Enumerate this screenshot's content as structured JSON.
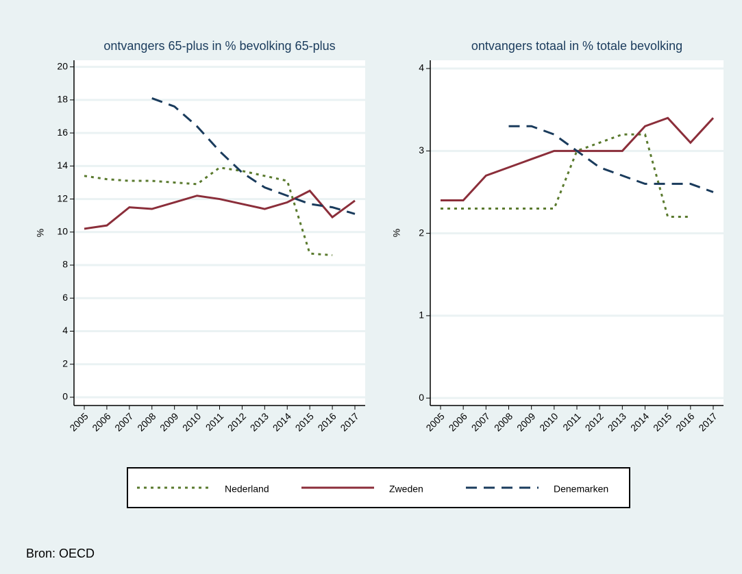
{
  "chart_data": [
    {
      "type": "line",
      "title": "ontvangers 65-plus in % bevolking 65-plus",
      "y_label": "%",
      "categories": [
        "2005",
        "2006",
        "2007",
        "2008",
        "2009",
        "2010",
        "2011",
        "2012",
        "2013",
        "2014",
        "2015",
        "2016",
        "2017"
      ],
      "ylim": [
        -0.5,
        20.4
      ],
      "yticks": [
        0,
        2,
        4,
        6,
        8,
        10,
        12,
        14,
        16,
        18,
        20
      ],
      "grid": true,
      "series": [
        {
          "name": "Nederland",
          "color": "#5a7a2e",
          "dash": "dot",
          "values": [
            13.4,
            13.2,
            13.1,
            13.1,
            13.0,
            12.9,
            13.9,
            13.7,
            13.4,
            13.1,
            8.7,
            8.6,
            null
          ]
        },
        {
          "name": "Zweden",
          "color": "#8b2e3a",
          "dash": "solid",
          "values": [
            10.2,
            10.4,
            11.5,
            11.4,
            11.8,
            12.2,
            12.0,
            11.7,
            11.4,
            11.8,
            12.5,
            10.9,
            11.9
          ]
        },
        {
          "name": "Denemarken",
          "color": "#1a3b5c",
          "dash": "dash",
          "values": [
            null,
            null,
            null,
            18.1,
            17.6,
            16.4,
            14.9,
            13.6,
            12.7,
            12.2,
            11.7,
            11.5,
            11.1
          ]
        }
      ]
    },
    {
      "type": "line",
      "title": "ontvangers totaal in % totale bevolking",
      "y_label": "%",
      "categories": [
        "2005",
        "2006",
        "2007",
        "2008",
        "2009",
        "2010",
        "2011",
        "2012",
        "2013",
        "2014",
        "2015",
        "2016",
        "2017"
      ],
      "ylim": [
        -0.09,
        4.1
      ],
      "yticks": [
        0,
        1,
        2,
        3,
        4
      ],
      "grid": true,
      "series": [
        {
          "name": "Nederland",
          "color": "#5a7a2e",
          "dash": "dot",
          "values": [
            2.3,
            2.3,
            2.3,
            2.3,
            2.3,
            2.3,
            3.0,
            3.1,
            3.2,
            3.2,
            2.2,
            2.2,
            null
          ]
        },
        {
          "name": "Zweden",
          "color": "#8b2e3a",
          "dash": "solid",
          "values": [
            2.4,
            2.4,
            2.7,
            2.8,
            2.9,
            3.0,
            3.0,
            3.0,
            3.0,
            3.3,
            3.4,
            3.1,
            3.4
          ]
        },
        {
          "name": "Denemarken",
          "color": "#1a3b5c",
          "dash": "dash",
          "values": [
            null,
            null,
            null,
            3.3,
            3.3,
            3.2,
            3.0,
            2.8,
            2.7,
            2.6,
            2.6,
            2.6,
            2.5
          ]
        }
      ]
    }
  ],
  "source": "Bron: OECD"
}
